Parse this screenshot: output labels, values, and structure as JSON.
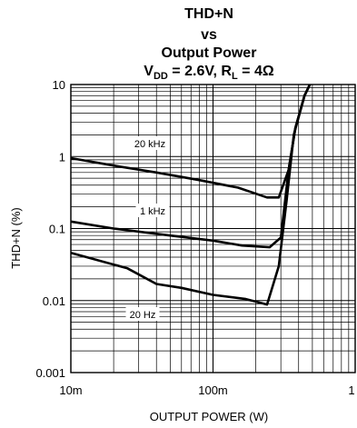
{
  "chart_data": {
    "type": "line",
    "title_lines": [
      "THD+N",
      "vs",
      "Output Power"
    ],
    "subtitle": {
      "vdd_main": "V",
      "vdd_sub": "DD",
      "vdd_rest": " = 2.6V, R",
      "rl_sub": "L",
      "rl_rest": " = 4Ω"
    },
    "xlabel": "OUTPUT POWER (W)",
    "ylabel": "THD+N (%)",
    "x_scale": "log",
    "y_scale": "log",
    "xlim": [
      0.01,
      1
    ],
    "ylim": [
      0.001,
      10
    ],
    "x_ticks": [
      {
        "value": 0.01,
        "label": "10m"
      },
      {
        "value": 0.1,
        "label": "100m"
      },
      {
        "value": 1,
        "label": "1"
      }
    ],
    "y_ticks": [
      {
        "value": 0.001,
        "label": "0.001"
      },
      {
        "value": 0.01,
        "label": "0.01"
      },
      {
        "value": 0.1,
        "label": "0.1"
      },
      {
        "value": 1,
        "label": "1"
      },
      {
        "value": 10,
        "label": "10"
      }
    ],
    "grid": true,
    "series": [
      {
        "name": "20 kHz",
        "x": [
          0.01,
          0.02,
          0.04,
          0.08,
          0.15,
          0.24,
          0.29,
          0.34,
          0.38,
          0.44,
          0.48
        ],
        "y": [
          0.95,
          0.75,
          0.6,
          0.47,
          0.37,
          0.27,
          0.27,
          0.65,
          2.5,
          7.0,
          10.0
        ]
      },
      {
        "name": "1 kHz",
        "x": [
          0.01,
          0.02,
          0.05,
          0.1,
          0.16,
          0.25,
          0.3,
          0.34,
          0.38,
          0.44,
          0.48
        ],
        "y": [
          0.125,
          0.1,
          0.08,
          0.068,
          0.058,
          0.055,
          0.075,
          0.65,
          2.5,
          7.0,
          10.0
        ]
      },
      {
        "name": "20 Hz",
        "x": [
          0.01,
          0.025,
          0.04,
          0.06,
          0.1,
          0.17,
          0.24,
          0.29,
          0.33,
          0.37,
          0.44,
          0.48
        ],
        "y": [
          0.046,
          0.028,
          0.017,
          0.015,
          0.012,
          0.0105,
          0.0088,
          0.03,
          0.25,
          2.0,
          7.0,
          10.0
        ]
      }
    ]
  }
}
